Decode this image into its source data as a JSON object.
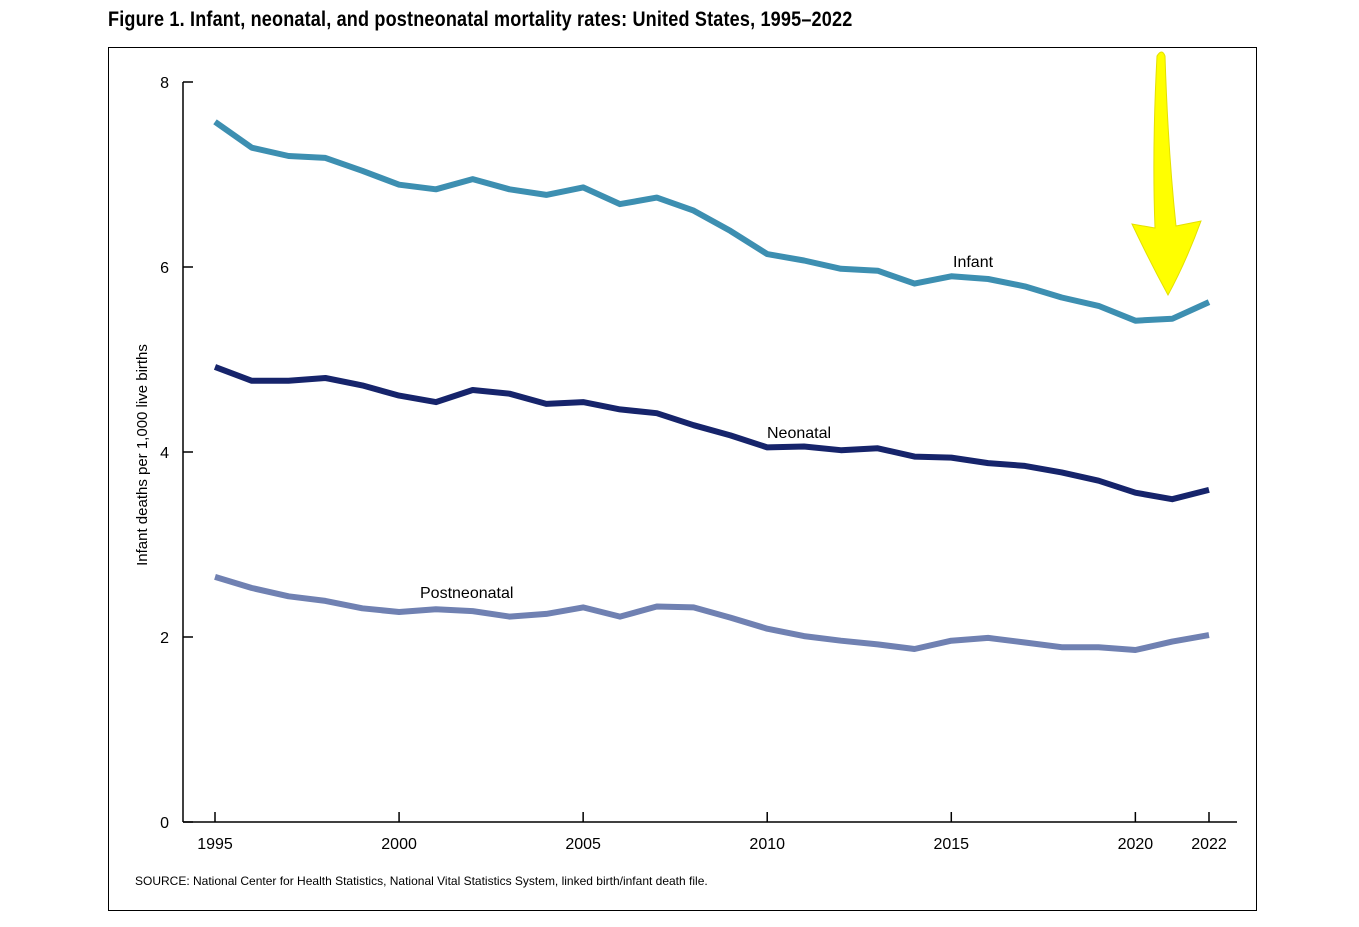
{
  "figure": {
    "title": "Figure 1. Infant, neonatal, and postneonatal mortality rates: United States, 1995–2022",
    "source": "SOURCE: National Center for Health Statistics, National Vital Statistics System, linked birth/infant death file."
  },
  "chart_data": {
    "type": "line",
    "title": "Figure 1. Infant, neonatal, and postneonatal mortality rates: United States, 1995–2022",
    "xlabel": "",
    "ylabel": "Infant deaths per 1,000 live births",
    "xlim": [
      1995,
      2022
    ],
    "ylim": [
      0,
      8
    ],
    "x": [
      1995,
      1996,
      1997,
      1998,
      1999,
      2000,
      2001,
      2002,
      2003,
      2004,
      2005,
      2006,
      2007,
      2008,
      2009,
      2010,
      2011,
      2012,
      2013,
      2014,
      2015,
      2016,
      2017,
      2018,
      2019,
      2020,
      2021,
      2022
    ],
    "x_ticks": [
      1995,
      2000,
      2005,
      2010,
      2015,
      2020,
      2022
    ],
    "y_ticks": [
      0,
      2,
      4,
      6,
      8
    ],
    "grid": false,
    "series": [
      {
        "name": "Infant",
        "color": "#3d8fb1",
        "values": [
          7.57,
          7.29,
          7.2,
          7.18,
          7.04,
          6.89,
          6.84,
          6.95,
          6.84,
          6.78,
          6.86,
          6.68,
          6.75,
          6.61,
          6.39,
          6.14,
          6.07,
          5.98,
          5.96,
          5.82,
          5.9,
          5.87,
          5.79,
          5.67,
          5.58,
          5.42,
          5.44,
          5.62
        ]
      },
      {
        "name": "Neonatal",
        "color": "#16246b",
        "values": [
          4.92,
          4.77,
          4.77,
          4.8,
          4.72,
          4.61,
          4.54,
          4.67,
          4.63,
          4.52,
          4.54,
          4.46,
          4.42,
          4.29,
          4.18,
          4.05,
          4.06,
          4.02,
          4.04,
          3.95,
          3.94,
          3.88,
          3.85,
          3.78,
          3.69,
          3.56,
          3.49,
          3.59
        ]
      },
      {
        "name": "Postneonatal",
        "color": "#7081b2",
        "values": [
          2.65,
          2.53,
          2.44,
          2.39,
          2.31,
          2.27,
          2.3,
          2.28,
          2.22,
          2.25,
          2.32,
          2.22,
          2.33,
          2.32,
          2.21,
          2.09,
          2.01,
          1.96,
          1.92,
          1.87,
          1.96,
          1.99,
          1.94,
          1.89,
          1.89,
          1.86,
          1.95,
          2.02
        ]
      }
    ],
    "annotations": [
      {
        "type": "arrow",
        "color": "#ffff00",
        "points_to_x": 2021
      }
    ]
  }
}
